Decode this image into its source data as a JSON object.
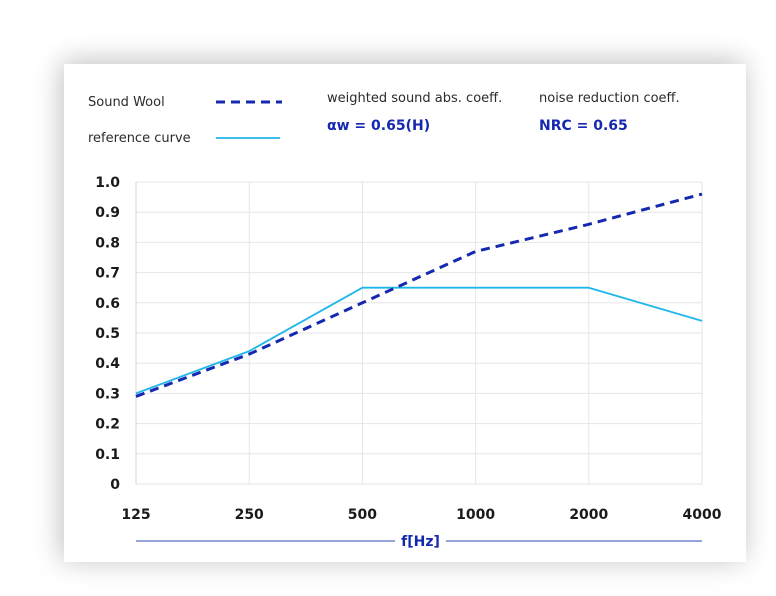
{
  "legend": {
    "items": [
      {
        "label": "Sound Wool",
        "style": "dashed",
        "color": "#1528b0"
      },
      {
        "label": "reference curve",
        "style": "solid",
        "color": "#1fb7ea"
      }
    ]
  },
  "metrics": {
    "weighted": {
      "label": "weighted sound abs. coeff.",
      "value": "αw = 0.65(H)"
    },
    "nrc": {
      "label": "noise reduction coeff.",
      "value": "NRC = 0.65"
    }
  },
  "chart_data": {
    "type": "line",
    "categories": [
      "125",
      "250",
      "500",
      "1000",
      "2000",
      "4000"
    ],
    "series": [
      {
        "name": "Sound Wool",
        "values": [
          0.29,
          0.43,
          0.6,
          0.77,
          0.86,
          0.96
        ],
        "color": "#1528b0",
        "dashed": true
      },
      {
        "name": "reference curve",
        "values": [
          0.3,
          0.44,
          0.65,
          0.65,
          0.65,
          0.54
        ],
        "color": "#1fb7ea",
        "dashed": false
      }
    ],
    "yticks": [
      "0",
      "0.1",
      "0.2",
      "0.3",
      "0.4",
      "0.5",
      "0.6",
      "0.7",
      "0.8",
      "0.9",
      "1.0"
    ],
    "xlabel": "f[Hz]",
    "ylabel": "",
    "ylim": [
      0,
      1.0
    ],
    "grid": true,
    "axis_color": "#5b6fc4"
  }
}
